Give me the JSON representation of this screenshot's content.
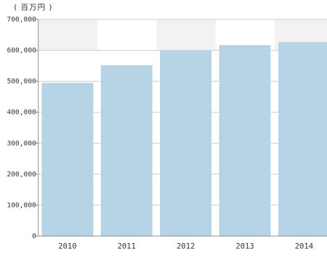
{
  "chart_data": {
    "type": "bar",
    "unit_label": "( 百万円 )",
    "categories": [
      "2010",
      "2011",
      "2012",
      "2013",
      "2014"
    ],
    "values": [
      495000,
      552000,
      600000,
      617000,
      627000
    ],
    "ylim": [
      0,
      700000
    ],
    "yticks": [
      0,
      100000,
      200000,
      300000,
      400000,
      500000,
      600000,
      700000
    ],
    "ytick_labels": [
      "0",
      "100,000",
      "200,000",
      "300,000",
      "400,000",
      "500,000",
      "600,000",
      "700,000"
    ],
    "grid": true,
    "legend": "none",
    "colors": {
      "bar": "#b7d4e6",
      "band": "#f2f2f2",
      "grid": "#cccccc",
      "axis": "#888888"
    }
  }
}
